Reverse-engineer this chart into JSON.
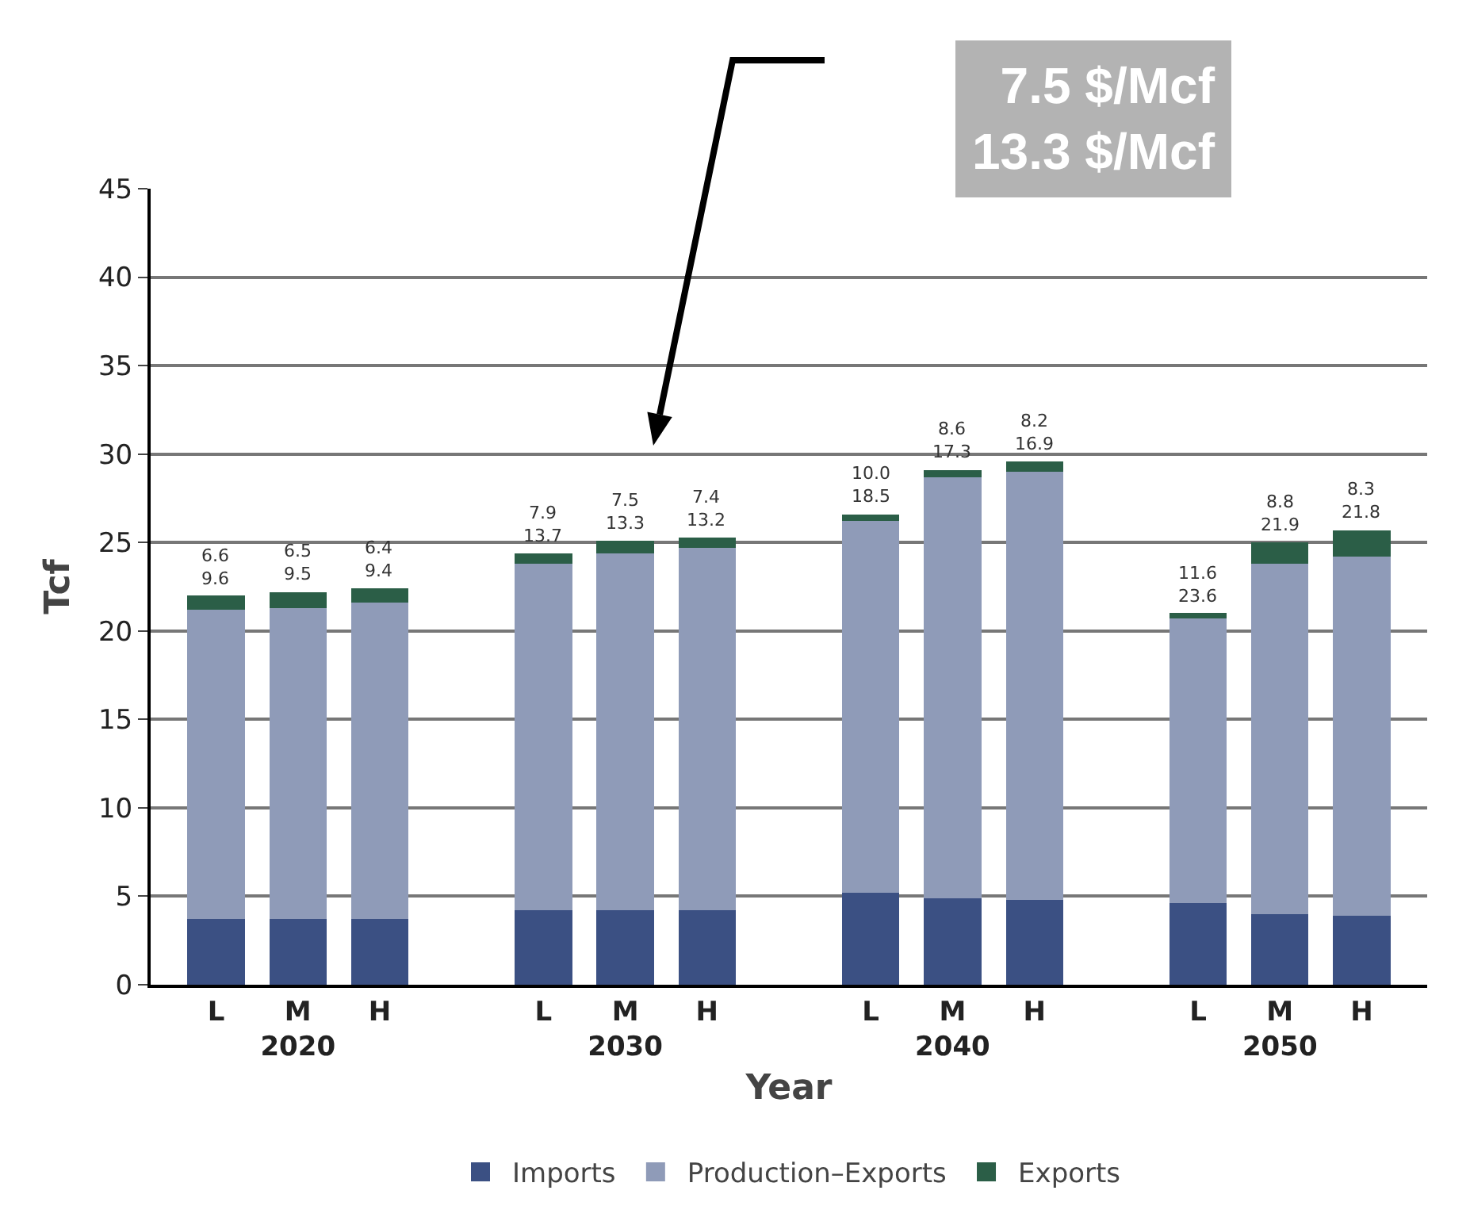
{
  "chart_data": {
    "type": "bar",
    "stacked": true,
    "xlabel": "Year",
    "ylabel": "Tcf",
    "categories": [
      "L",
      "M\n2020",
      "H",
      null,
      "L",
      "M\n2030",
      "H",
      null,
      "L",
      "M\n2040",
      "H",
      null,
      "L",
      "M\n2050",
      "H"
    ],
    "series": [
      {
        "name": "Imports",
        "color": "#3b5083",
        "values": [
          3.7,
          3.7,
          3.7,
          null,
          4.2,
          4.2,
          4.2,
          null,
          5.2,
          4.9,
          4.8,
          null,
          4.6,
          4.0,
          3.9
        ]
      },
      {
        "name": "Production–Exports",
        "color": "#8f9bb8",
        "values": [
          17.5,
          17.6,
          17.9,
          null,
          19.6,
          20.2,
          20.5,
          null,
          21.0,
          23.8,
          24.2,
          null,
          16.1,
          19.8,
          20.3
        ]
      },
      {
        "name": "Exports",
        "color": "#2b5e47",
        "values": [
          0.8,
          0.9,
          0.8,
          null,
          0.6,
          0.7,
          0.6,
          null,
          0.4,
          0.4,
          0.6,
          null,
          0.3,
          1.2,
          1.5
        ]
      }
    ],
    "ylim": [
      0,
      45
    ],
    "yticks": [
      0,
      5,
      10,
      15,
      20,
      25,
      30,
      35,
      40,
      45
    ],
    "grid": "y",
    "legend": "bottom",
    "annotations": [
      "7.5 $/Mcf\n13.3 $/Mcf",
      {
        "text": "6.6\n9.6",
        "y": 22.0
      },
      {
        "text": "6.5\n9.5",
        "x": "M\n2020",
        "y": 22.2
      },
      {
        "text": "6.4\n9.4",
        "y": 22.4
      },
      {
        "text": "7.9\n13.7",
        "y": 24.4
      },
      {
        "text": "7.5\n13.3",
        "x": "M\n2030",
        "y": 25.1
      },
      {
        "text": "7.4\n13.2",
        "y": 25.3
      },
      {
        "text": "10.0\n18.5",
        "y": 26.6
      },
      {
        "text": "8.6\n17.3",
        "x": "M\n2040",
        "y": 29.1
      },
      {
        "text": "8.2\n16.9",
        "y": 29.6
      },
      {
        "text": "11.6\n23.6",
        "y": 21.0
      },
      {
        "text": "8.8\n21.9",
        "x": "M\n2050",
        "y": 25.0
      },
      {
        "text": "8.3\n21.8",
        "y": 25.7
      }
    ]
  }
}
